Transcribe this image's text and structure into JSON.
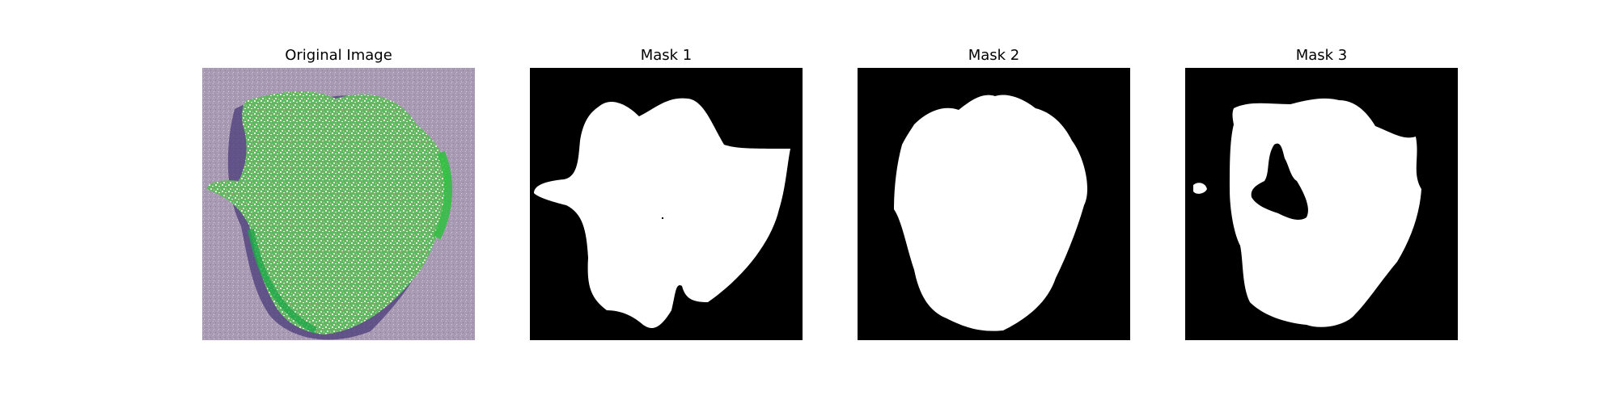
{
  "figure": {
    "panels": [
      {
        "title": "Original Image",
        "kind": "photo"
      },
      {
        "title": "Mask 1",
        "kind": "mask"
      },
      {
        "title": "Mask 2",
        "kind": "mask"
      },
      {
        "title": "Mask 3",
        "kind": "mask"
      }
    ]
  },
  "colors": {
    "background": "#ffffff",
    "mask_background": "#000000",
    "mask_foreground": "#ffffff",
    "photo_background": "#a99ab4",
    "leaf_green": "#3fae3f",
    "leaf_highlight": "#dfe9d6",
    "leaf_shadow": "#4a3b7a"
  }
}
